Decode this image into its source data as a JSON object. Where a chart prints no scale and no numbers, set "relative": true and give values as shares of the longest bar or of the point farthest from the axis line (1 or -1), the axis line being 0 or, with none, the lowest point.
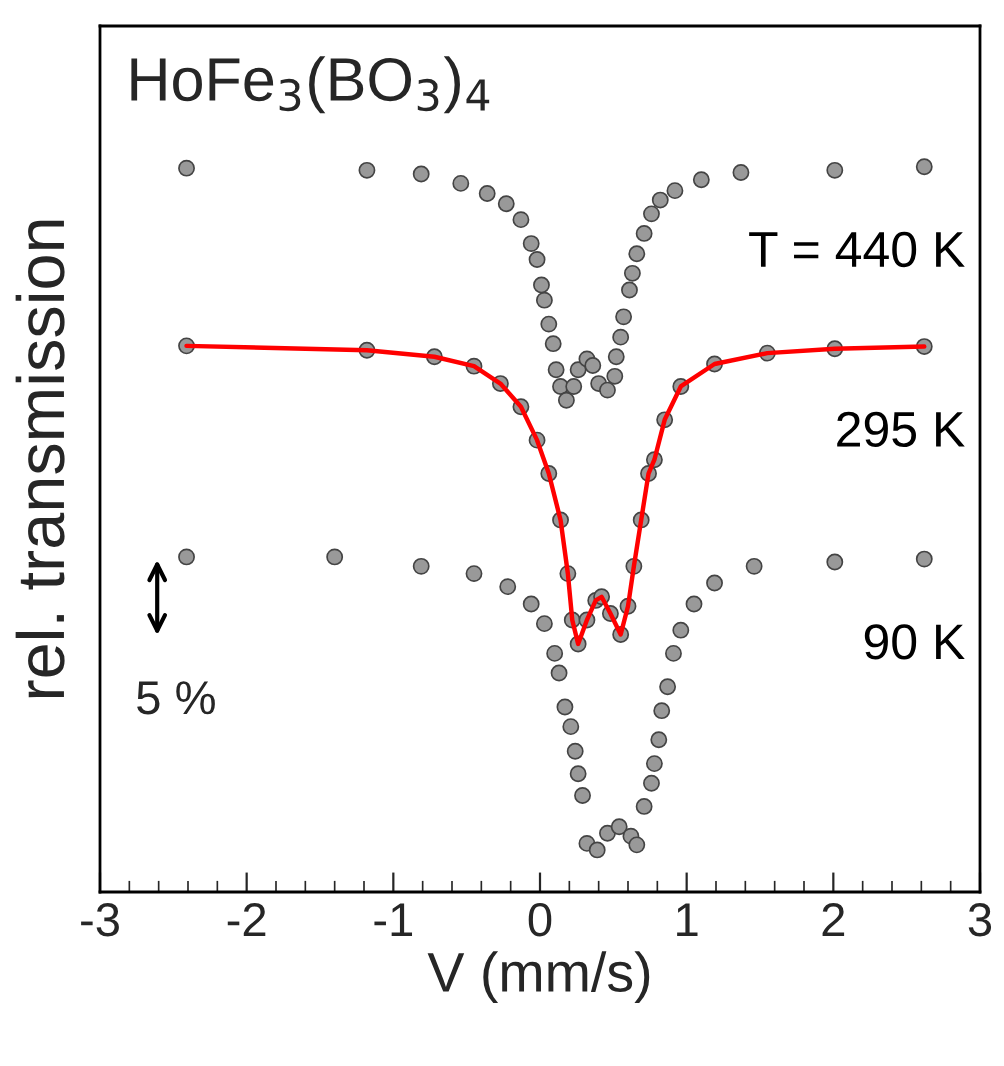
{
  "chart_data": {
    "type": "scatter",
    "relative": true,
    "xlabel": "V (mm/s)",
    "ylabel": "rel. transmission",
    "xlim": [
      -3,
      3
    ],
    "xticks": [
      -3,
      -2,
      -1,
      0,
      1,
      2,
      3
    ],
    "marker": "circle",
    "grid": false,
    "legend": false,
    "annotations": [
      "HoFe$_{3}$(BO$_{3}$)$_{4}$",
      "5 %"
    ],
    "series": [
      {
        "name": "T = 440 K",
        "color": "#999999",
        "x": [
          -2.41,
          -1.18,
          -0.81,
          -0.54,
          -0.36,
          -0.23,
          -0.13,
          -0.06,
          -0.02,
          0.01,
          0.03,
          0.06,
          0.09,
          0.11,
          0.14,
          0.18,
          0.23,
          0.26,
          0.32,
          0.36,
          0.4,
          0.46,
          0.51,
          0.52,
          0.55,
          0.57,
          0.61,
          0.63,
          0.66,
          0.71,
          0.76,
          0.82,
          0.92,
          1.1,
          1.37,
          2.01,
          2.62
        ],
        "values": [
          0.998,
          0.995,
          0.99,
          0.977,
          0.963,
          0.949,
          0.927,
          0.894,
          0.872,
          0.837,
          0.816,
          0.783,
          0.756,
          0.72,
          0.697,
          0.678,
          0.697,
          0.72,
          0.735,
          0.726,
          0.701,
          0.692,
          0.711,
          0.738,
          0.765,
          0.793,
          0.83,
          0.853,
          0.88,
          0.908,
          0.935,
          0.954,
          0.967,
          0.982,
          0.992,
          0.995,
          1.0
        ]
      },
      {
        "name": "295 K",
        "color": "#999999",
        "x": [
          -2.41,
          -1.18,
          -0.72,
          -0.45,
          -0.27,
          -0.13,
          -0.02,
          0.06,
          0.14,
          0.19,
          0.22,
          0.26,
          0.32,
          0.38,
          0.42,
          0.48,
          0.55,
          0.6,
          0.64,
          0.69,
          0.74,
          0.78,
          0.85,
          0.96,
          1.19,
          1.55,
          2.01,
          2.62
        ],
        "values": [
          0.753,
          0.747,
          0.738,
          0.725,
          0.701,
          0.669,
          0.623,
          0.577,
          0.513,
          0.439,
          0.375,
          0.342,
          0.375,
          0.402,
          0.407,
          0.384,
          0.355,
          0.394,
          0.449,
          0.513,
          0.577,
          0.596,
          0.651,
          0.697,
          0.728,
          0.743,
          0.749,
          0.752
        ]
      },
      {
        "type": "line",
        "color": "#ff0000",
        "marker": "none",
        "x": [
          -2.41,
          -1.18,
          -0.72,
          -0.45,
          -0.27,
          -0.13,
          -0.02,
          0.06,
          0.14,
          0.19,
          0.22,
          0.26,
          0.32,
          0.38,
          0.42,
          0.48,
          0.55,
          0.6,
          0.64,
          0.69,
          0.74,
          0.78,
          0.85,
          0.96,
          1.19,
          1.55,
          2.01,
          2.62
        ],
        "values": [
          0.753,
          0.747,
          0.738,
          0.725,
          0.701,
          0.669,
          0.623,
          0.577,
          0.513,
          0.439,
          0.375,
          0.342,
          0.375,
          0.402,
          0.407,
          0.384,
          0.355,
          0.394,
          0.449,
          0.513,
          0.577,
          0.596,
          0.651,
          0.697,
          0.728,
          0.743,
          0.749,
          0.752
        ]
      },
      {
        "name": "90 K",
        "color": "#999999",
        "x": [
          -2.41,
          -1.4,
          -0.81,
          -0.45,
          -0.22,
          -0.06,
          0.03,
          0.1,
          0.13,
          0.17,
          0.21,
          0.24,
          0.26,
          0.29,
          0.32,
          0.39,
          0.46,
          0.54,
          0.62,
          0.66,
          0.71,
          0.76,
          0.78,
          0.81,
          0.83,
          0.87,
          0.91,
          0.96,
          1.05,
          1.19,
          1.46,
          2.01,
          2.62
        ],
        "values": [
          0.462,
          0.462,
          0.449,
          0.439,
          0.421,
          0.397,
          0.37,
          0.329,
          0.302,
          0.255,
          0.228,
          0.194,
          0.163,
          0.133,
          0.067,
          0.058,
          0.081,
          0.09,
          0.077,
          0.065,
          0.118,
          0.15,
          0.177,
          0.21,
          0.25,
          0.283,
          0.329,
          0.361,
          0.397,
          0.426,
          0.449,
          0.455,
          0.459
        ]
      }
    ]
  }
}
